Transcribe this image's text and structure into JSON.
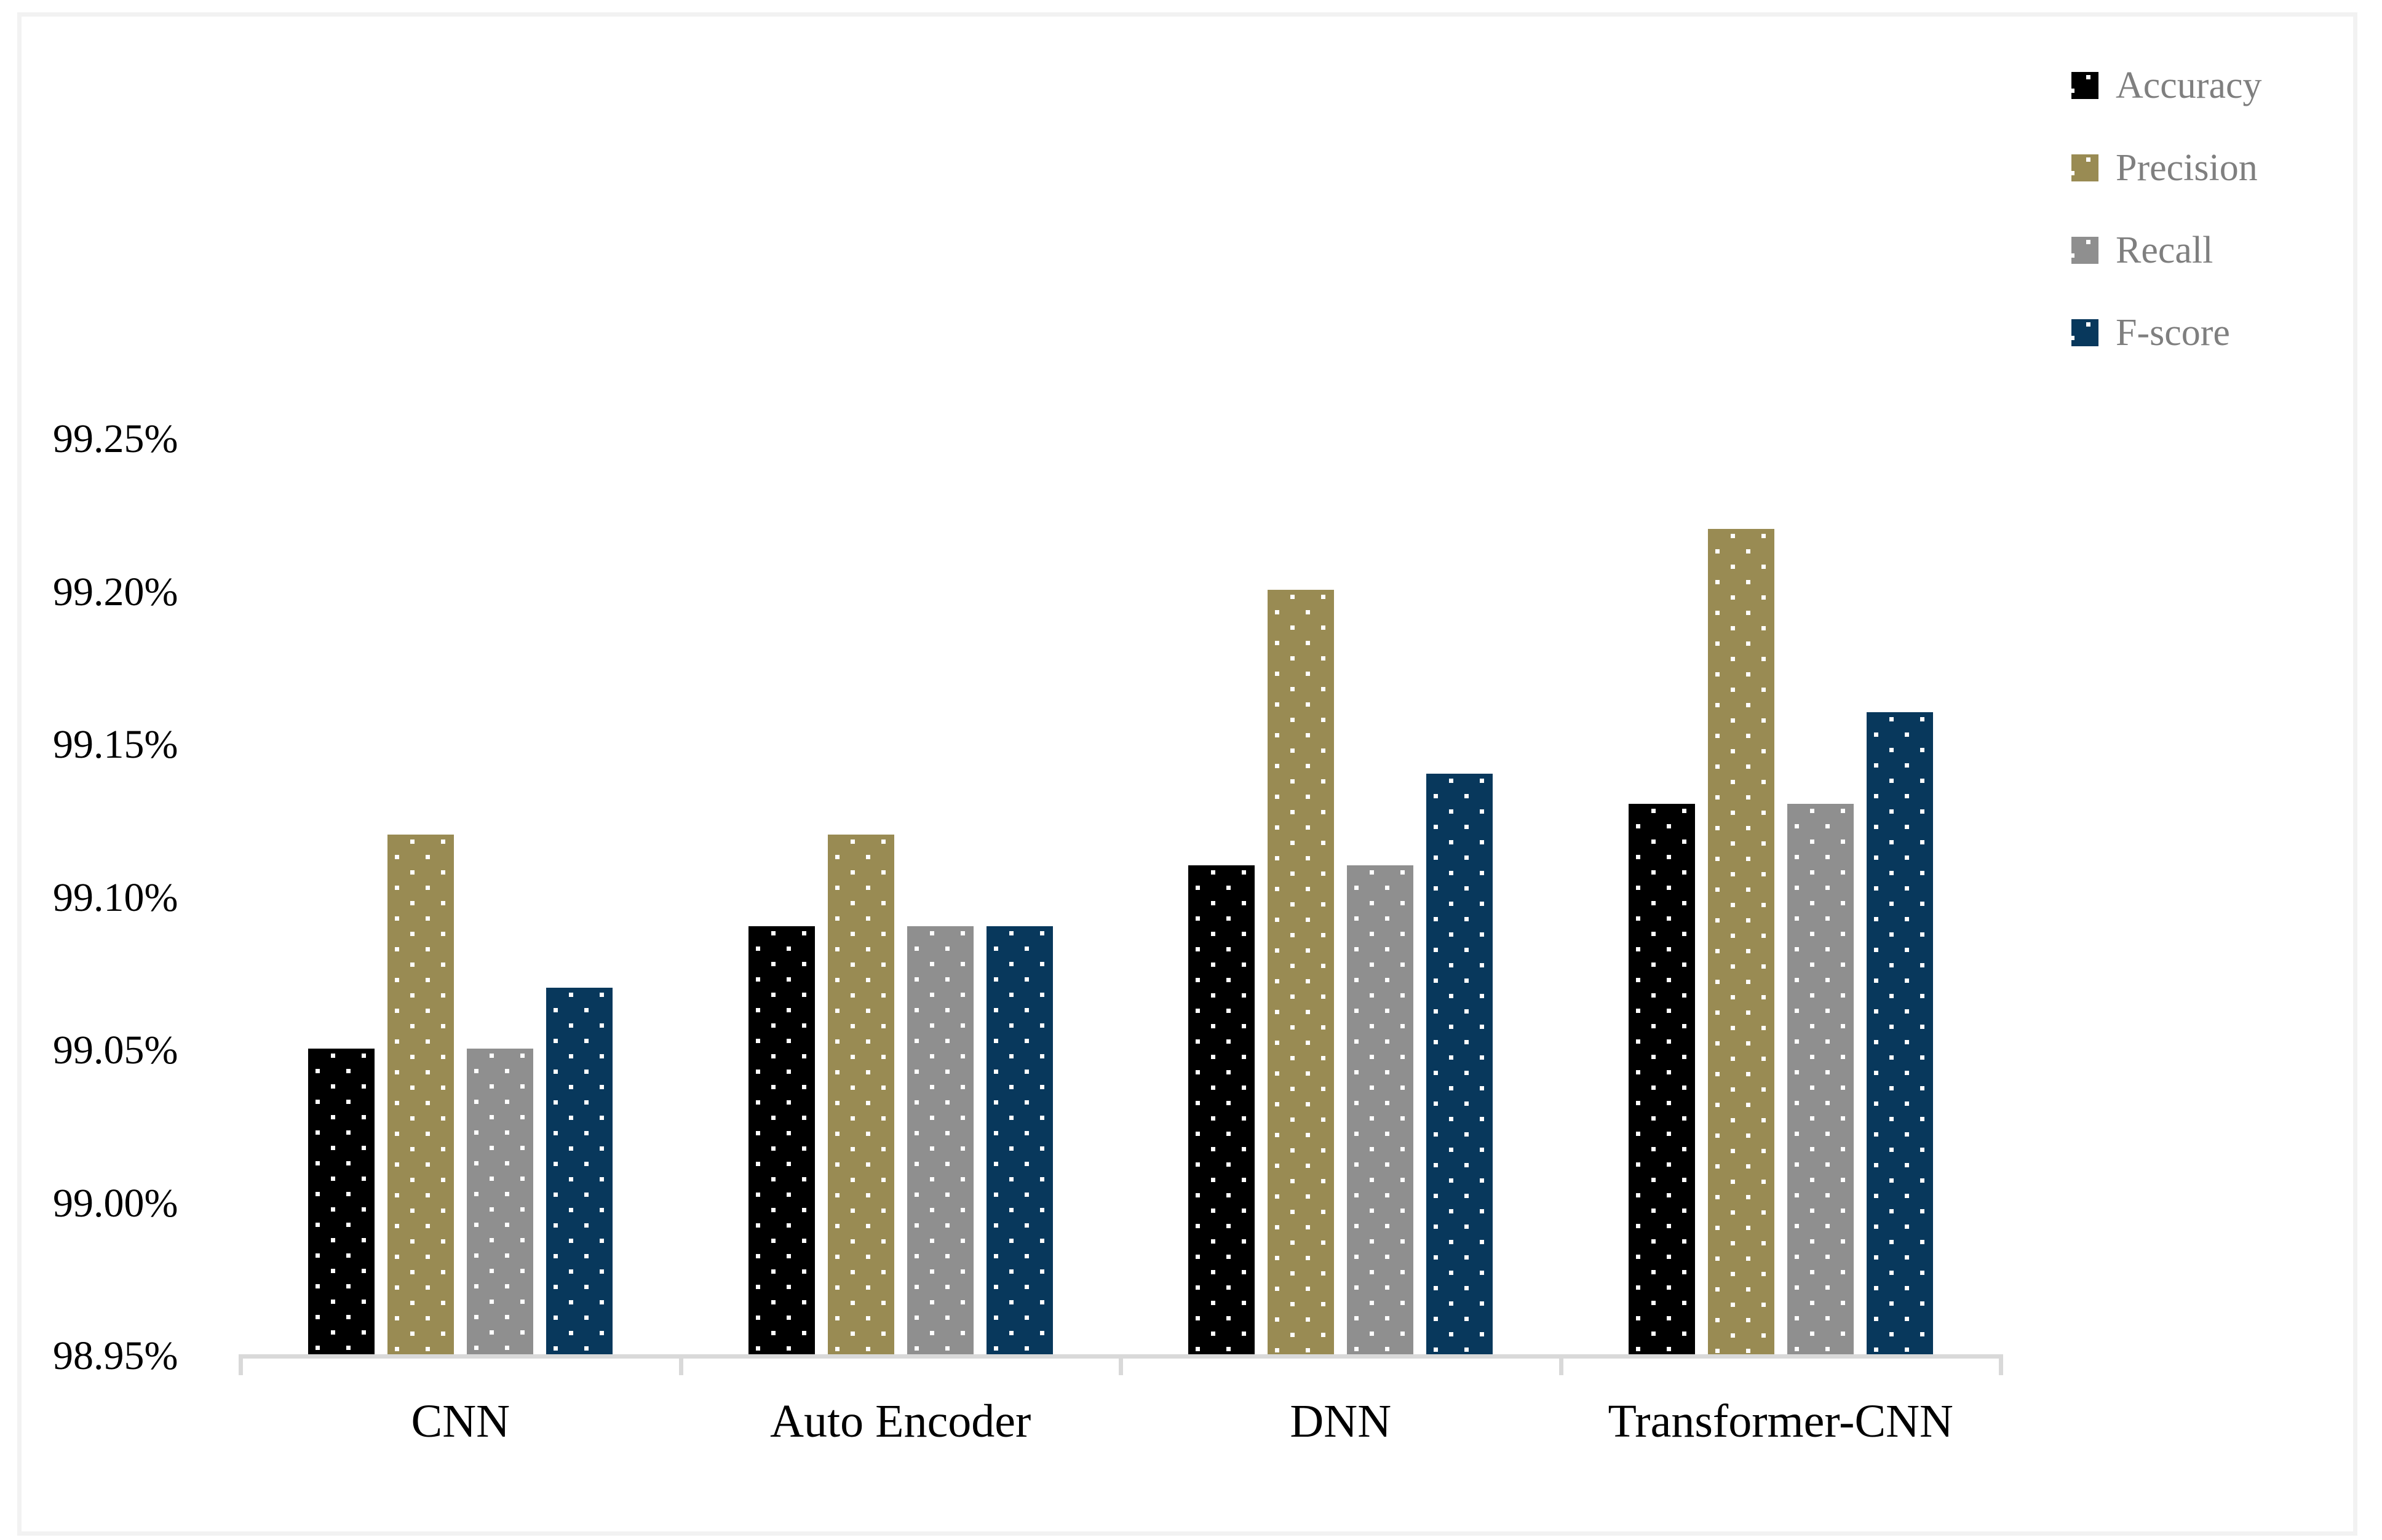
{
  "figure": {
    "background": "#FFFFFF",
    "frame_color": "#F2F2F2",
    "axis_line_color": "#D9D9D9",
    "bar_fill_pattern": "small white square dots, offset lattice",
    "legend_text_color": "#7F7F7F"
  },
  "chart_data": {
    "type": "bar",
    "title": "",
    "xlabel": "",
    "ylabel": "",
    "categories": [
      "CNN",
      "Auto Encoder",
      "DNN",
      "Transformer-CNN"
    ],
    "series": [
      {
        "name": "Accuracy",
        "color": "#000000",
        "values": [
          99.05,
          99.09,
          99.11,
          99.13
        ]
      },
      {
        "name": "Precision",
        "color": "#998B53",
        "values": [
          99.12,
          99.12,
          99.2,
          99.22
        ]
      },
      {
        "name": "Recall",
        "color": "#8F8F8F",
        "values": [
          99.05,
          99.09,
          99.11,
          99.13
        ]
      },
      {
        "name": "F-score",
        "color": "#08385C",
        "values": [
          99.07,
          99.09,
          99.14,
          99.16
        ]
      }
    ],
    "ylim": [
      98.95,
      99.25
    ],
    "ytick_step": 0.05,
    "ytick_labels": [
      "98.95%",
      "99.00%",
      "99.05%",
      "99.10%",
      "99.15%",
      "99.20%",
      "99.25%"
    ],
    "grid": false,
    "legend_position": "top-right"
  }
}
